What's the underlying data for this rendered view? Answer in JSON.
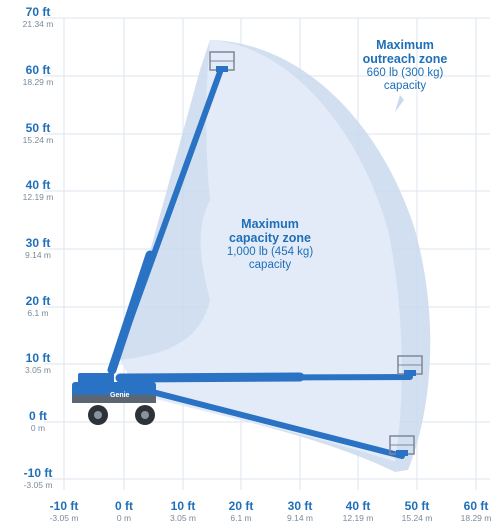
{
  "y_axis": {
    "ticks": [
      {
        "ft": "70 ft",
        "m": "21.34 m"
      },
      {
        "ft": "60 ft",
        "m": "18.29 m"
      },
      {
        "ft": "50 ft",
        "m": "15.24 m"
      },
      {
        "ft": "40 ft",
        "m": "12.19 m"
      },
      {
        "ft": "30 ft",
        "m": "9.14 m"
      },
      {
        "ft": "20 ft",
        "m": "6.1 m"
      },
      {
        "ft": "10 ft",
        "m": "3.05 m"
      },
      {
        "ft": "0 ft",
        "m": "0 m"
      },
      {
        "ft": "-10 ft",
        "m": "-3.05 m"
      }
    ]
  },
  "x_axis": {
    "ticks": [
      {
        "ft": "-10 ft",
        "m": "-3.05 m"
      },
      {
        "ft": "0 ft",
        "m": "0 m"
      },
      {
        "ft": "10 ft",
        "m": "3.05 m"
      },
      {
        "ft": "20 ft",
        "m": "6.1 m"
      },
      {
        "ft": "30 ft",
        "m": "9.14 m"
      },
      {
        "ft": "40 ft",
        "m": "12.19 m"
      },
      {
        "ft": "50 ft",
        "m": "15.24 m"
      },
      {
        "ft": "60 ft",
        "m": "18.29 m"
      }
    ]
  },
  "zones": {
    "outreach": {
      "title1": "Maximum",
      "title2": "outreach zone",
      "capacity": "660 lb (300 kg)",
      "label": "capacity"
    },
    "capacity": {
      "title1": "Maximum",
      "title2": "capacity zone",
      "capacity": "1,000 lb (454 kg)",
      "label": "capacity"
    }
  },
  "machine": {
    "brand": "Genie"
  },
  "colors": {
    "boom": "#2a72c4",
    "zone_outer": "#c9d9ee",
    "zone_inner": "#e3ecf7",
    "grid": "#dde6ef",
    "label_blue": "#1f6fb8"
  }
}
